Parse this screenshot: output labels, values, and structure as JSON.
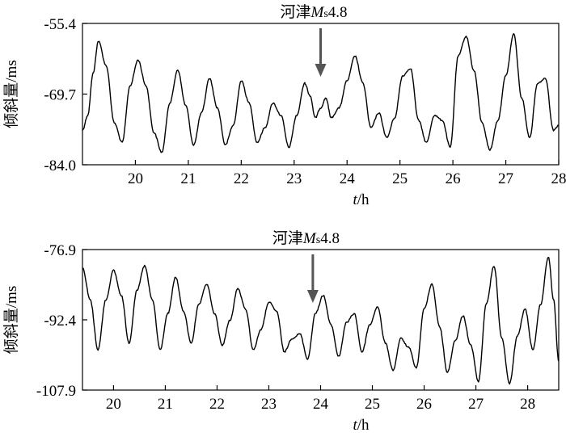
{
  "chart_data": [
    {
      "type": "line",
      "xlabel_italic": "t",
      "xlabel_unit": "/h",
      "ylabel": "倾斜量/ms",
      "xlim": [
        19.0,
        28.0
      ],
      "ylim": [
        -84.0,
        -55.4
      ],
      "y_ticks": [
        "-55.4",
        "-69.7",
        "-84.0"
      ],
      "x_ticks": [
        20,
        21,
        22,
        23,
        24,
        25,
        26,
        27,
        28
      ],
      "annotation": {
        "text_cn": "河津",
        "text_m": "M",
        "text_sub": "s",
        "text_mag": "4.8",
        "x": 23.5
      },
      "series": [
        {
          "x": [
            19.0,
            19.1,
            19.2,
            19.3,
            19.45,
            19.6,
            19.75,
            19.9,
            20.05,
            20.2,
            20.35,
            20.5,
            20.65,
            20.8,
            20.95,
            21.1,
            21.25,
            21.4,
            21.55,
            21.7,
            21.85,
            22.0,
            22.15,
            22.3,
            22.45,
            22.6,
            22.75,
            22.9,
            23.05,
            23.2,
            23.3,
            23.4,
            23.5,
            23.6,
            23.7,
            23.85,
            24.0,
            24.15,
            24.3,
            24.45,
            24.6,
            24.75,
            24.9,
            25.05,
            25.2,
            25.35,
            25.5,
            25.65,
            25.8,
            25.95,
            26.1,
            26.25,
            26.4,
            26.55,
            26.7,
            26.85,
            27.0,
            27.15,
            27.3,
            27.45,
            27.6,
            27.75,
            27.9,
            28.0
          ],
          "y": [
            -77.0,
            -74.0,
            -65.5,
            -59.0,
            -64.0,
            -75.5,
            -79.5,
            -68.0,
            -62.8,
            -68.0,
            -77.5,
            -81.5,
            -71.5,
            -64.8,
            -72.0,
            -80.0,
            -73.5,
            -66.5,
            -72.5,
            -80.0,
            -76.0,
            -67.0,
            -71.5,
            -79.5,
            -76.5,
            -71.5,
            -74.0,
            -80.5,
            -74.0,
            -67.5,
            -70.0,
            -74.5,
            -72.5,
            -70.5,
            -74.5,
            -72.5,
            -67.0,
            -62.0,
            -67.5,
            -76.5,
            -73.5,
            -78.5,
            -74.5,
            -66.0,
            -64.5,
            -75.0,
            -79.5,
            -74.0,
            -75.0,
            -80.5,
            -62.0,
            -58.0,
            -65.0,
            -75.5,
            -81.0,
            -75.0,
            -66.0,
            -57.5,
            -70.5,
            -78.5,
            -67.5,
            -66.5,
            -77.0,
            -76.0
          ]
        }
      ]
    },
    {
      "type": "line",
      "xlabel_italic": "t",
      "xlabel_unit": "/h",
      "ylabel": "倾斜量/ms",
      "xlim": [
        19.4,
        28.6
      ],
      "ylim": [
        -107.9,
        -76.9
      ],
      "y_ticks": [
        "-76.9",
        "-92.4",
        "-107.9"
      ],
      "x_ticks": [
        20,
        21,
        22,
        23,
        24,
        25,
        26,
        27,
        28
      ],
      "annotation": {
        "text_cn": "河津",
        "text_m": "M",
        "text_sub": "s",
        "text_mag": "4.8",
        "x": 23.85
      },
      "series": [
        {
          "x": [
            19.4,
            19.55,
            19.7,
            19.85,
            20.0,
            20.15,
            20.3,
            20.45,
            20.6,
            20.75,
            20.9,
            21.05,
            21.2,
            21.35,
            21.5,
            21.65,
            21.8,
            21.95,
            22.1,
            22.25,
            22.4,
            22.55,
            22.7,
            22.85,
            23.0,
            23.15,
            23.3,
            23.45,
            23.6,
            23.75,
            23.9,
            24.05,
            24.2,
            24.35,
            24.5,
            24.65,
            24.8,
            24.95,
            25.1,
            25.25,
            25.4,
            25.55,
            25.7,
            25.85,
            26.0,
            26.15,
            26.3,
            26.45,
            26.6,
            26.75,
            26.9,
            27.05,
            27.2,
            27.35,
            27.5,
            27.65,
            27.8,
            27.95,
            28.1,
            28.25,
            28.4,
            28.5,
            28.6
          ],
          "y": [
            -81.0,
            -88.0,
            -99.0,
            -88.0,
            -81.5,
            -87.0,
            -97.5,
            -86.0,
            -80.5,
            -88.0,
            -99.0,
            -91.0,
            -83.0,
            -90.5,
            -97.5,
            -89.0,
            -84.5,
            -91.0,
            -98.0,
            -92.5,
            -85.5,
            -90.0,
            -99.0,
            -94.5,
            -88.5,
            -90.5,
            -99.5,
            -96.5,
            -95.5,
            -101.0,
            -91.0,
            -87.0,
            -93.5,
            -100.5,
            -93.0,
            -91.0,
            -99.5,
            -93.5,
            -89.5,
            -97.5,
            -103.5,
            -96.5,
            -98.5,
            -103.0,
            -90.0,
            -84.5,
            -94.0,
            -104.0,
            -97.0,
            -91.5,
            -98.0,
            -106.0,
            -89.0,
            -80.5,
            -96.5,
            -106.5,
            -96.0,
            -90.0,
            -99.0,
            -89.0,
            -78.5,
            -88.0,
            -101.5
          ]
        }
      ]
    }
  ]
}
